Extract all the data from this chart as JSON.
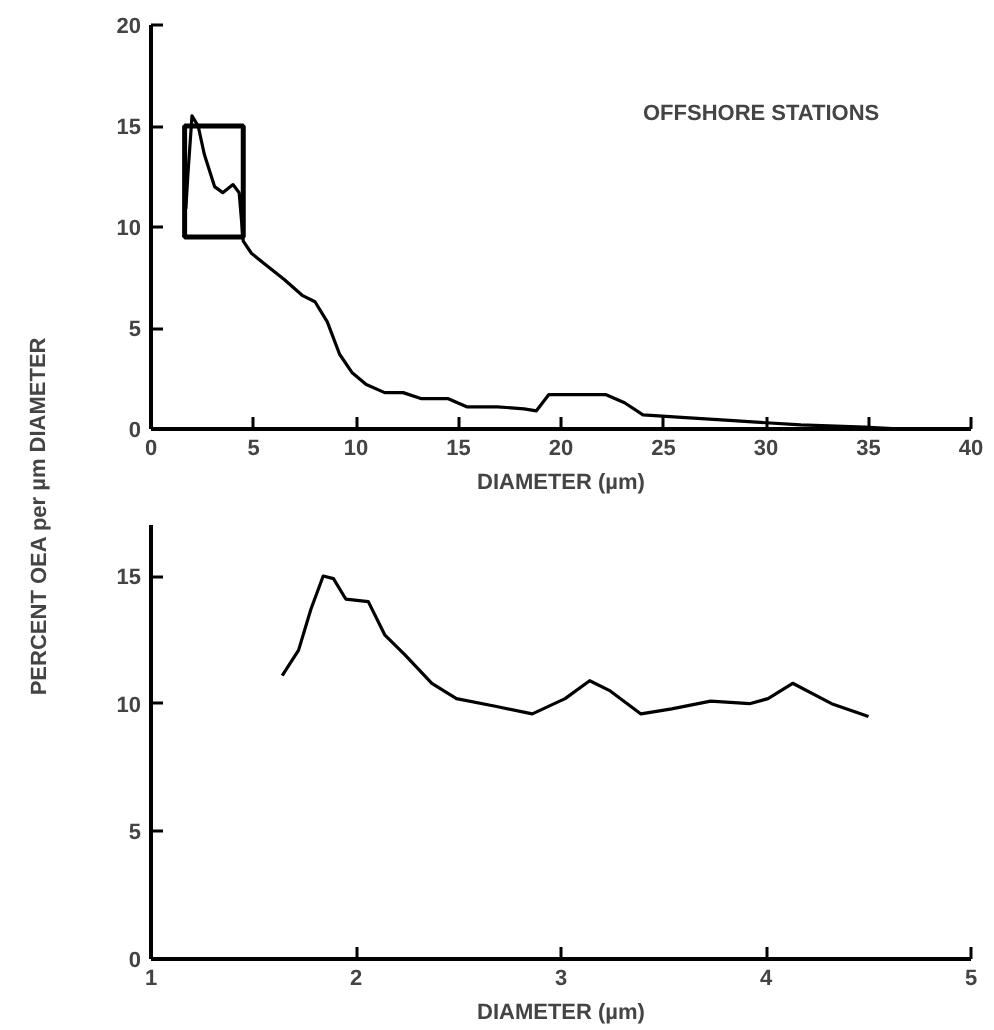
{
  "chart_data": [
    {
      "type": "line",
      "ylabel": "PERCENT OEA per µm DIAMETER",
      "xlabel": "DIAMETER (µm)",
      "annotations": [
        "OFFSHORE STATIONS"
      ],
      "x": [
        1.7,
        1.8,
        2.0,
        2.3,
        2.6,
        3.1,
        3.5,
        4.0,
        4.3,
        4.5,
        4.9,
        5.5,
        6.5,
        7.4,
        8.0,
        8.6,
        9.2,
        9.8,
        10.5,
        11.4,
        12.3,
        13.2,
        14.5,
        15.4,
        16.9,
        18.2,
        18.8,
        19.4,
        20.6,
        22.2,
        23.1,
        24.0,
        25.5,
        28.6,
        31.7,
        34.8,
        36.6
      ],
      "series": [
        {
          "color": "#000000",
          "values": [
            10.9,
            12.6,
            15.5,
            15.0,
            13.6,
            12.0,
            11.7,
            12.1,
            11.7,
            9.3,
            8.7,
            8.2,
            7.4,
            6.6,
            6.3,
            5.3,
            3.7,
            2.8,
            2.2,
            1.8,
            1.8,
            1.5,
            1.5,
            1.1,
            1.1,
            1.0,
            0.9,
            1.7,
            1.7,
            1.7,
            1.3,
            0.7,
            0.6,
            0.4,
            0.2,
            0.1,
            0.0
          ]
        }
      ],
      "xlim": [
        0,
        40
      ],
      "ylim": [
        0,
        20
      ],
      "xticks": [
        0,
        5,
        10,
        15,
        20,
        25,
        30,
        35,
        40
      ],
      "yticks": [
        0,
        5,
        10,
        15,
        20
      ],
      "grid": false,
      "marker": "none",
      "line_style": "solid"
    },
    {
      "type": "line",
      "xlabel": "DIAMETER (µm)",
      "x": [
        1.64,
        1.72,
        1.78,
        1.84,
        1.89,
        1.95,
        2.06,
        2.14,
        2.24,
        2.37,
        2.49,
        2.68,
        2.86,
        3.02,
        3.14,
        3.24,
        3.39,
        3.54,
        3.73,
        3.92,
        4.01,
        4.13,
        4.32,
        4.5
      ],
      "series": [
        {
          "color": "#000000",
          "values": [
            11.1,
            12.1,
            13.7,
            15.0,
            14.9,
            14.1,
            14.0,
            12.7,
            11.9,
            10.8,
            10.2,
            9.9,
            9.6,
            10.2,
            10.9,
            10.5,
            9.6,
            9.8,
            10.1,
            10.0,
            10.2,
            10.8,
            10.0,
            9.5
          ]
        }
      ],
      "xlim": [
        1,
        5
      ],
      "ylim": [
        0,
        17
      ],
      "xticks": [
        1,
        2,
        3,
        4,
        5
      ],
      "yticks": [
        0,
        5,
        10,
        15
      ],
      "grid": false,
      "marker": "none",
      "line_style": "solid"
    }
  ]
}
